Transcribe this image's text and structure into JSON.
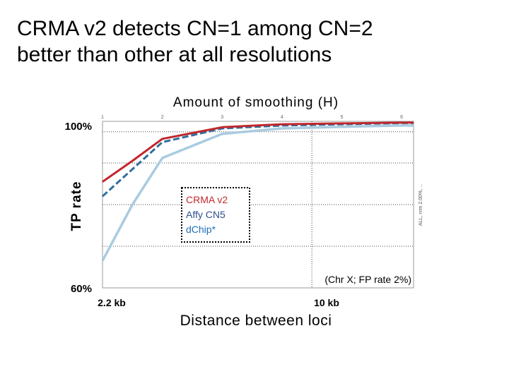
{
  "slide": {
    "title_line1": "CRMA v2 detects CN=1 among CN=2",
    "title_line2": "better than other at all resolutions"
  },
  "chart_data": {
    "type": "line",
    "title": "Amount of smoothing (H)",
    "xlabel": "Distance between loci",
    "ylabel": "TP rate",
    "ylim": [
      0.6,
      1.0
    ],
    "xlim": [
      1,
      6.2
    ],
    "y_tick_labels": [
      "100%",
      "60%"
    ],
    "x_tick_labels": [
      {
        "x": 1,
        "label": "2.2 kb"
      },
      {
        "x": 4.5,
        "label": "10 kb"
      }
    ],
    "top_ticks": [
      "1",
      "2",
      "3",
      "4",
      "5",
      "6"
    ],
    "x": [
      1,
      1.5,
      2,
      3,
      4,
      5,
      6,
      6.2
    ],
    "series": [
      {
        "name": "CRMA v2",
        "color": "#c0282d",
        "dash": "solid",
        "values": [
          0.855,
          0.905,
          0.958,
          0.986,
          0.993,
          0.995,
          0.997,
          0.997
        ]
      },
      {
        "name": "Affy CN5",
        "color": "#2f6e9e",
        "dash": "dashed",
        "values": [
          0.82,
          0.885,
          0.95,
          0.983,
          0.99,
          0.993,
          0.996,
          0.996
        ]
      },
      {
        "name": "dChip*",
        "color": "#a9cbe0",
        "dash": "solid",
        "values": [
          0.665,
          0.8,
          0.912,
          0.97,
          0.983,
          0.987,
          0.99,
          0.99
        ]
      }
    ],
    "legend_note": "(Chr X; FP rate 2%)",
    "side_note": "ALL, nrm 2.00%, ..."
  }
}
